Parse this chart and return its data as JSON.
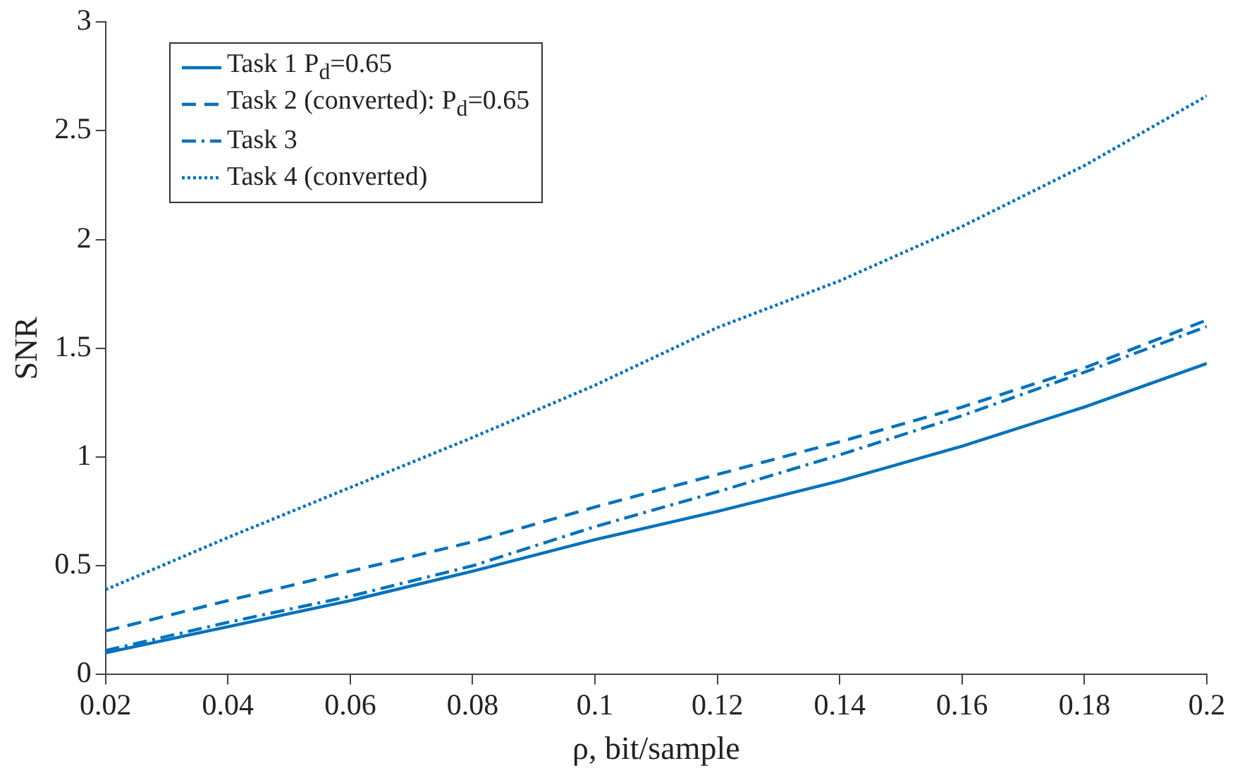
{
  "chart_data": {
    "type": "line",
    "xlabel": "ρ, bit/sample",
    "ylabel": "SNR",
    "x": [
      0.02,
      0.04,
      0.06,
      0.08,
      0.1,
      0.12,
      0.14,
      0.16,
      0.18,
      0.2
    ],
    "series": [
      {
        "name": "Task 1 P$_{d}$=0.65",
        "color": "#0072bd",
        "line_style": "solid",
        "values": [
          0.1,
          0.22,
          0.34,
          0.475,
          0.62,
          0.75,
          0.89,
          1.05,
          1.23,
          1.43
        ]
      },
      {
        "name": "Task 2 (converted): P$_{d}$=0.65",
        "color": "#0072bd",
        "line_style": "dashed",
        "values": [
          0.2,
          0.34,
          0.475,
          0.61,
          0.77,
          0.92,
          1.07,
          1.23,
          1.41,
          1.63
        ]
      },
      {
        "name": "Task 3",
        "color": "#0072bd",
        "line_style": "dashdot",
        "values": [
          0.11,
          0.24,
          0.36,
          0.5,
          0.68,
          0.84,
          1.01,
          1.19,
          1.39,
          1.6
        ]
      },
      {
        "name": "Task 4 (converted)",
        "color": "#0072bd",
        "line_style": "dotted",
        "values": [
          0.39,
          0.63,
          0.86,
          1.09,
          1.33,
          1.595,
          1.81,
          2.06,
          2.34,
          2.66
        ]
      }
    ],
    "xlim": [
      0.02,
      0.2
    ],
    "xticks": [
      0.02,
      0.04,
      0.06,
      0.08,
      0.1,
      0.12,
      0.14,
      0.16,
      0.18,
      0.2
    ],
    "ylim": [
      0,
      3
    ],
    "yticks": [
      0,
      0.5,
      1,
      1.5,
      2,
      2.5,
      3
    ],
    "grid": false,
    "legend": "top left",
    "marker": "none"
  }
}
